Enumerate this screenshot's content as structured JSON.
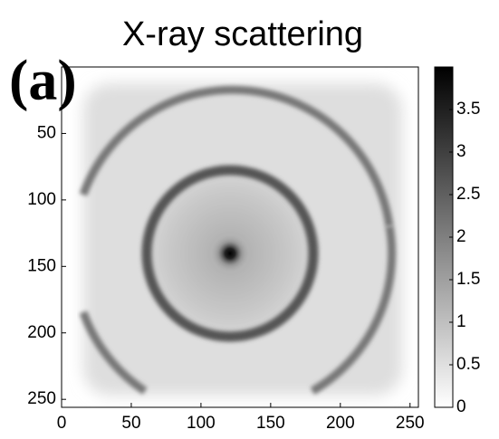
{
  "chart_data": {
    "type": "image",
    "title": "X-ray scattering",
    "panel_label": "(a)",
    "xlim": [
      0,
      256
    ],
    "ylim": [
      0,
      256
    ],
    "y_inverted": true,
    "xticks": [
      0,
      50,
      100,
      150,
      200,
      250
    ],
    "yticks": [
      50,
      100,
      150,
      200,
      250
    ],
    "colorbar": {
      "lim": [
        0,
        4
      ],
      "ticks": [
        0,
        0.5,
        1,
        1.5,
        2,
        2.5,
        3,
        3.5
      ],
      "colors": [
        "#ffffff",
        "#000000"
      ]
    }
  }
}
